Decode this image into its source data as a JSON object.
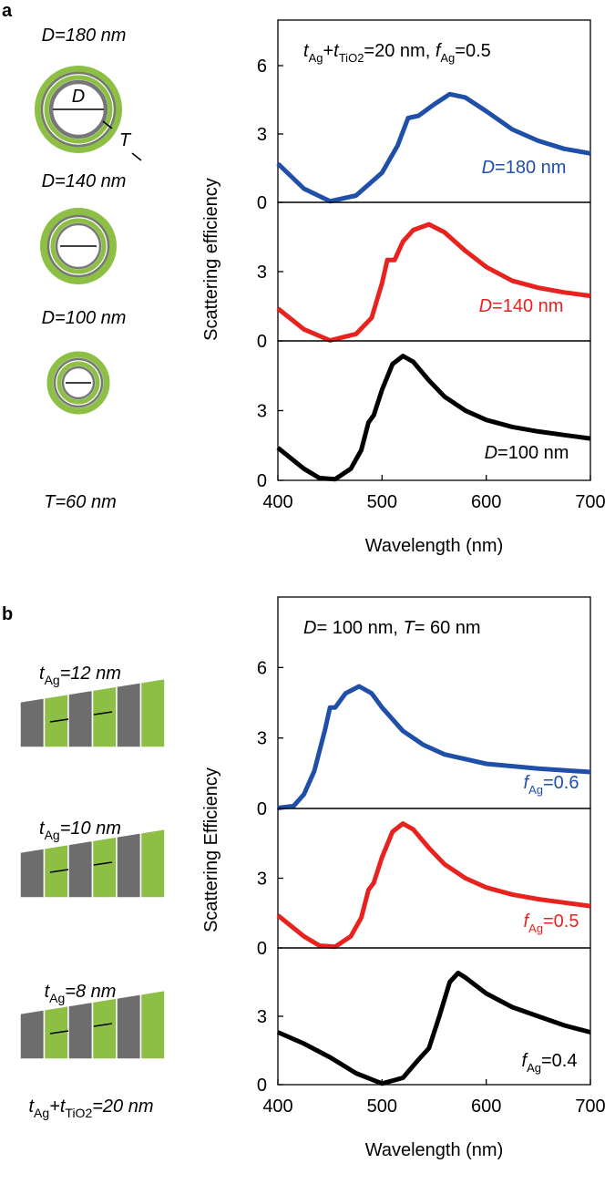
{
  "panels": [
    {
      "label": "a",
      "schematic_labels": [
        [
          {
            "text": "D=180 nm",
            "italic": true
          }
        ],
        [
          {
            "text": "D=140 nm",
            "italic": true
          }
        ],
        [
          {
            "text": "D=100 nm",
            "italic": true
          }
        ],
        [
          {
            "text": "T=60 nm",
            "italic": true
          }
        ],
        [
          {
            "text": "D",
            "italic": true
          }
        ],
        [
          {
            "text": "T",
            "italic": true
          }
        ]
      ]
    },
    {
      "label": "b",
      "schematic_labels": [
        [
          {
            "text": "t",
            "italic": true
          },
          {
            "text": "Ag",
            "sub": true
          },
          {
            "text": "=12 nm",
            "italic": true
          }
        ],
        [
          {
            "text": "t",
            "italic": true
          },
          {
            "text": "Ag",
            "sub": true
          },
          {
            "text": "=10 nm",
            "italic": true
          }
        ],
        [
          {
            "text": "t",
            "italic": true
          },
          {
            "text": "Ag",
            "sub": true
          },
          {
            "text": "=8 nm",
            "italic": true
          }
        ],
        [
          {
            "text": "t",
            "italic": true
          },
          {
            "text": "Ag",
            "sub": true
          },
          {
            "text": "+",
            "italic": true
          },
          {
            "text": "t",
            "italic": true
          },
          {
            "text": "TiO",
            "sub": true
          },
          {
            "text": "2",
            "sub": true
          },
          {
            "text": "=20 nm",
            "italic": true
          }
        ]
      ]
    }
  ],
  "chart_data": [
    {
      "type": "line",
      "annotation": [
        {
          "text": "t",
          "italic": true
        },
        {
          "text": "Ag",
          "sub": true
        },
        {
          "text": "+"
        },
        {
          "text": "t",
          "italic": true
        },
        {
          "text": "TiO",
          "sub": true
        },
        {
          "text": "2",
          "sub": true
        },
        {
          "text": "=20 nm, "
        },
        {
          "text": "f",
          "italic": true
        },
        {
          "text": "Ag",
          "sub": true
        },
        {
          "text": "=0.5"
        }
      ],
      "x": [
        400,
        425,
        450,
        475,
        500,
        515,
        525,
        535,
        550,
        565,
        580,
        600,
        625,
        650,
        675,
        700
      ],
      "series": [
        {
          "name": [
            {
              "text": "D",
              "italic": true
            },
            {
              "text": "=180 nm"
            }
          ],
          "color": "#1f4fa8",
          "values": [
            1.7,
            0.6,
            0.05,
            0.3,
            1.3,
            2.5,
            3.7,
            3.8,
            4.3,
            4.75,
            4.6,
            4.0,
            3.2,
            2.7,
            2.35,
            2.15
          ]
        }
      ],
      "xlim": [
        400,
        700
      ],
      "ylim": [
        0,
        8
      ],
      "yticks": [
        0,
        3,
        6
      ]
    },
    {
      "type": "line",
      "ylabel": "Scattering efficiency",
      "x": [
        400,
        425,
        450,
        475,
        490,
        500,
        505,
        512,
        520,
        530,
        545,
        560,
        580,
        600,
        625,
        650,
        675,
        700
      ],
      "series": [
        {
          "name": [
            {
              "text": "D",
              "italic": true
            },
            {
              "text": "=140 nm"
            }
          ],
          "color": "#e8231f",
          "values": [
            1.4,
            0.5,
            0.02,
            0.3,
            1.0,
            2.5,
            3.5,
            3.5,
            4.3,
            4.8,
            5.05,
            4.7,
            3.9,
            3.2,
            2.6,
            2.3,
            2.1,
            1.95
          ]
        }
      ],
      "xlim": [
        400,
        700
      ],
      "ylim": [
        0,
        6
      ],
      "yticks": [
        0,
        3
      ]
    },
    {
      "type": "line",
      "xlabel": "Wavelength (nm)",
      "x": [
        400,
        425,
        440,
        455,
        470,
        480,
        487,
        492,
        500,
        510,
        520,
        530,
        545,
        560,
        580,
        600,
        625,
        650,
        675,
        700
      ],
      "series": [
        {
          "name": [
            {
              "text": "D",
              "italic": true
            },
            {
              "text": "=100 nm"
            }
          ],
          "color": "#000000",
          "values": [
            1.4,
            0.5,
            0.1,
            0.05,
            0.5,
            1.3,
            2.5,
            2.8,
            3.9,
            5.0,
            5.35,
            5.1,
            4.3,
            3.6,
            3.0,
            2.6,
            2.3,
            2.1,
            1.95,
            1.8
          ]
        }
      ],
      "xlim": [
        400,
        700
      ],
      "ylim": [
        0,
        6
      ],
      "yticks": [
        0,
        3
      ],
      "xticks": [
        400,
        500,
        600,
        700
      ]
    },
    {
      "type": "line",
      "annotation": [
        {
          "text": "D",
          "italic": true
        },
        {
          "text": "= 100 nm, "
        },
        {
          "text": "T",
          "italic": true
        },
        {
          "text": "= 60 nm"
        }
      ],
      "x": [
        400,
        415,
        425,
        435,
        445,
        450,
        455,
        465,
        478,
        490,
        500,
        520,
        540,
        560,
        600,
        650,
        700
      ],
      "series": [
        {
          "name": [
            {
              "text": "f",
              "italic": true
            },
            {
              "text": "Ag",
              "sub": true
            },
            {
              "text": "=0.6"
            }
          ],
          "color": "#1f4fa8",
          "values": [
            0.02,
            0.1,
            0.6,
            1.6,
            3.3,
            4.3,
            4.3,
            4.9,
            5.2,
            4.9,
            4.3,
            3.3,
            2.7,
            2.3,
            1.9,
            1.7,
            1.55
          ]
        }
      ],
      "xlim": [
        400,
        700
      ],
      "ylim": [
        0,
        9
      ],
      "yticks": [
        0,
        3,
        6
      ]
    },
    {
      "type": "line",
      "ylabel": "Scattering Efficiency",
      "x": [
        400,
        425,
        440,
        455,
        470,
        480,
        487,
        492,
        500,
        510,
        520,
        530,
        545,
        560,
        580,
        600,
        625,
        650,
        675,
        700
      ],
      "series": [
        {
          "name": [
            {
              "text": "f",
              "italic": true
            },
            {
              "text": "Ag",
              "sub": true
            },
            {
              "text": "=0.5"
            }
          ],
          "color": "#e8231f",
          "values": [
            1.4,
            0.5,
            0.1,
            0.05,
            0.5,
            1.3,
            2.5,
            2.8,
            3.9,
            5.0,
            5.35,
            5.1,
            4.3,
            3.6,
            3.0,
            2.6,
            2.3,
            2.1,
            1.95,
            1.8
          ]
        }
      ],
      "xlim": [
        400,
        700
      ],
      "ylim": [
        0,
        6
      ],
      "yticks": [
        0,
        3
      ]
    },
    {
      "type": "line",
      "xlabel": "Wavelength (nm)",
      "x": [
        400,
        425,
        450,
        475,
        500,
        520,
        535,
        545,
        555,
        565,
        573,
        580,
        600,
        625,
        650,
        675,
        700
      ],
      "series": [
        {
          "name": [
            {
              "text": "f",
              "italic": true
            },
            {
              "text": "Ag",
              "sub": true
            },
            {
              "text": "=0.4"
            }
          ],
          "color": "#000000",
          "values": [
            2.3,
            1.8,
            1.2,
            0.5,
            0.05,
            0.3,
            1.1,
            1.6,
            3.0,
            4.5,
            4.9,
            4.7,
            4.0,
            3.4,
            3.0,
            2.6,
            2.3
          ]
        }
      ],
      "xlim": [
        400,
        700
      ],
      "ylim": [
        0,
        6
      ],
      "yticks": [
        0,
        3
      ],
      "xticks": [
        400,
        500,
        600,
        700
      ]
    }
  ]
}
